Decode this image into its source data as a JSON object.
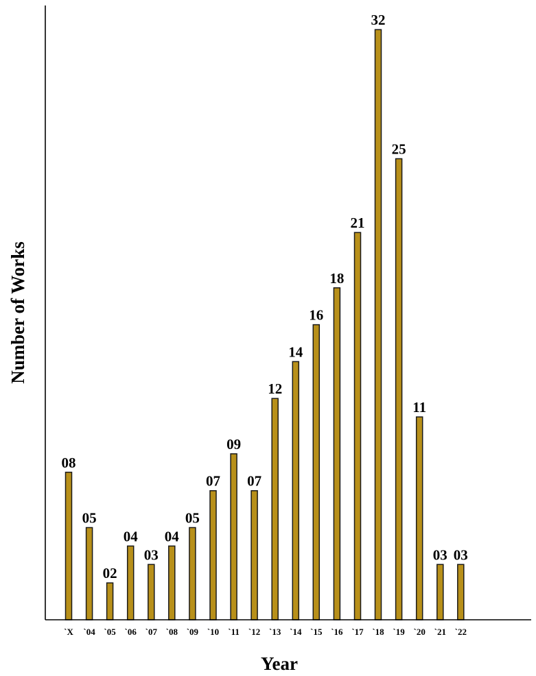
{
  "chart_data": {
    "type": "bar",
    "categories": [
      "`X",
      "`04",
      "`05",
      "`06",
      "`07",
      "`08",
      "`09",
      "`10",
      "`11",
      "`12",
      "`13",
      "`14",
      "`15",
      "`16",
      "`17",
      "`18",
      "`19",
      "`20",
      "`21",
      "`22"
    ],
    "values": [
      8,
      5,
      2,
      4,
      3,
      4,
      5,
      7,
      9,
      7,
      12,
      14,
      16,
      18,
      21,
      32,
      25,
      11,
      3,
      3
    ],
    "data_labels": [
      "08",
      "05",
      "02",
      "04",
      "03",
      "04",
      "05",
      "07",
      "09",
      "07",
      "12",
      "14",
      "16",
      "18",
      "21",
      "32",
      "25",
      "11",
      "03",
      "03"
    ],
    "xlabel": "Year",
    "ylabel": "Number of Works",
    "ylim": [
      0,
      35
    ],
    "grid": false,
    "bar_color": "#b8901a"
  }
}
